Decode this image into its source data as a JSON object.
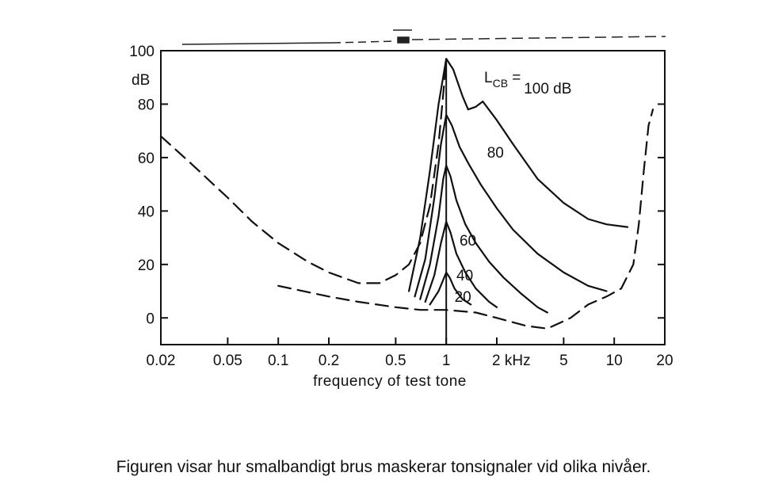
{
  "chart_data": {
    "type": "line",
    "title": "",
    "xlabel": "frequency of test tone",
    "ylabel": "dB",
    "xscale": "log",
    "xlim": [
      0.02,
      20
    ],
    "ylim": [
      -10,
      100
    ],
    "x_ticks": [
      {
        "value": 0.02,
        "label": "0.02"
      },
      {
        "value": 0.05,
        "label": "0.05"
      },
      {
        "value": 0.1,
        "label": "0.1"
      },
      {
        "value": 0.2,
        "label": "0.2"
      },
      {
        "value": 0.5,
        "label": "0.5"
      },
      {
        "value": 1,
        "label": "1"
      },
      {
        "value": 2,
        "label": "2 kHz"
      },
      {
        "value": 5,
        "label": "5"
      },
      {
        "value": 10,
        "label": "10"
      },
      {
        "value": 20,
        "label": "20"
      }
    ],
    "y_ticks": [
      {
        "value": 100,
        "label": "100"
      },
      {
        "value": 80,
        "label": "80"
      },
      {
        "value": 60,
        "label": "60"
      },
      {
        "value": 40,
        "label": "40"
      },
      {
        "value": 20,
        "label": "20"
      },
      {
        "value": 0,
        "label": "0"
      }
    ],
    "legend_header": "L",
    "legend_header_sub": "CB",
    "legend_header_suffix": " =",
    "series": [
      {
        "name": "100 dB",
        "style": "solid",
        "points": [
          [
            0.6,
            10
          ],
          [
            0.7,
            30
          ],
          [
            0.8,
            55
          ],
          [
            0.9,
            80
          ],
          [
            1.0,
            97
          ],
          [
            1.1,
            93
          ],
          [
            1.25,
            83
          ],
          [
            1.35,
            78
          ],
          [
            1.5,
            79
          ],
          [
            1.65,
            81
          ],
          [
            2.0,
            74
          ],
          [
            2.5,
            65
          ],
          [
            3.5,
            52
          ],
          [
            5,
            43
          ],
          [
            7,
            37
          ],
          [
            9,
            35
          ],
          [
            12,
            34
          ]
        ]
      },
      {
        "name": "80",
        "style": "solid",
        "points": [
          [
            0.65,
            8
          ],
          [
            0.75,
            22
          ],
          [
            0.85,
            45
          ],
          [
            0.93,
            65
          ],
          [
            1.0,
            76
          ],
          [
            1.08,
            72
          ],
          [
            1.2,
            64
          ],
          [
            1.35,
            58
          ],
          [
            1.6,
            50
          ],
          [
            2.0,
            41
          ],
          [
            2.5,
            33
          ],
          [
            3.5,
            24
          ],
          [
            5,
            17
          ],
          [
            7,
            12
          ],
          [
            9,
            10
          ]
        ]
      },
      {
        "name": "60",
        "style": "solid",
        "points": [
          [
            0.7,
            7
          ],
          [
            0.8,
            20
          ],
          [
            0.9,
            38
          ],
          [
            0.96,
            52
          ],
          [
            1.0,
            57
          ],
          [
            1.06,
            53
          ],
          [
            1.15,
            44
          ],
          [
            1.3,
            35
          ],
          [
            1.5,
            28
          ],
          [
            1.8,
            21
          ],
          [
            2.2,
            15
          ],
          [
            2.8,
            9
          ],
          [
            3.5,
            4
          ],
          [
            4,
            2
          ]
        ]
      },
      {
        "name": "40",
        "style": "solid",
        "points": [
          [
            0.75,
            6
          ],
          [
            0.85,
            16
          ],
          [
            0.93,
            28
          ],
          [
            1.0,
            36
          ],
          [
            1.06,
            32
          ],
          [
            1.15,
            24
          ],
          [
            1.3,
            17
          ],
          [
            1.5,
            11
          ],
          [
            1.8,
            6
          ],
          [
            2.0,
            4
          ]
        ]
      },
      {
        "name": "20",
        "style": "solid",
        "points": [
          [
            0.8,
            5
          ],
          [
            0.9,
            10
          ],
          [
            1.0,
            17
          ],
          [
            1.05,
            15
          ],
          [
            1.12,
            11
          ],
          [
            1.25,
            7
          ],
          [
            1.4,
            5
          ]
        ]
      },
      {
        "name": "",
        "style": "dashed",
        "points": [
          [
            0.02,
            68
          ],
          [
            0.03,
            58
          ],
          [
            0.05,
            45
          ],
          [
            0.07,
            36
          ],
          [
            0.1,
            28
          ],
          [
            0.15,
            21
          ],
          [
            0.2,
            17
          ],
          [
            0.3,
            13
          ],
          [
            0.4,
            13
          ],
          [
            0.5,
            16
          ],
          [
            0.6,
            20
          ],
          [
            0.7,
            28
          ],
          [
            0.8,
            42
          ],
          [
            0.9,
            65
          ],
          [
            1.0,
            96
          ]
        ]
      },
      {
        "name": "",
        "style": "dashed",
        "points": [
          [
            0.1,
            12
          ],
          [
            0.2,
            8
          ],
          [
            0.3,
            6
          ],
          [
            0.5,
            4
          ],
          [
            0.7,
            3
          ],
          [
            1.0,
            3
          ],
          [
            1.5,
            2
          ],
          [
            2.0,
            0
          ],
          [
            3.0,
            -3
          ],
          [
            4.0,
            -4
          ],
          [
            5.5,
            0
          ],
          [
            7,
            5
          ],
          [
            9,
            8
          ],
          [
            11,
            11
          ],
          [
            13,
            20
          ],
          [
            14,
            35
          ],
          [
            15,
            55
          ],
          [
            16,
            72
          ],
          [
            17,
            78
          ]
        ]
      }
    ],
    "annotations": [
      {
        "text": "100 dB",
        "x": 2.9,
        "y": 84
      },
      {
        "text": "80",
        "x": 1.75,
        "y": 60
      },
      {
        "text": "60",
        "x": 1.2,
        "y": 27
      },
      {
        "text": "40",
        "x": 1.15,
        "y": 14
      },
      {
        "text": "20",
        "x": 1.12,
        "y": 6
      }
    ],
    "grid": false,
    "legend": "none"
  },
  "caption": "Figuren visar hur smalbandigt brus maskerar tonsignaler vid olika nivåer."
}
